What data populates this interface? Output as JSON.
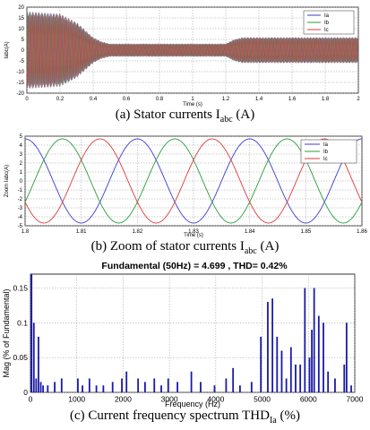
{
  "captions": {
    "a_prefix": "(a) Stator currents I",
    "a_sub": "abc",
    "a_suffix": " (A)",
    "b_prefix": "(b) Zoom of stator currents I",
    "b_sub": "abc",
    "b_suffix": " (A)",
    "c_prefix": "(c) Current frequency spectrum THD",
    "c_sub": "Ia",
    "c_suffix": " (%)"
  },
  "chart_data": [
    {
      "type": "line",
      "title": "",
      "xlabel": "Time (s)",
      "ylabel": "Iabc(A)",
      "xlim": [
        0,
        2
      ],
      "ylim": [
        -20,
        20
      ],
      "xticks": [
        "0",
        "0.2",
        "0.4",
        "0.6",
        "0.8",
        "1",
        "1.2",
        "1.4",
        "1.6",
        "1.8",
        "2"
      ],
      "yticks": [
        "20",
        "15",
        "10",
        "5",
        "0",
        "-5",
        "-10",
        "-15",
        "-20"
      ],
      "grid": true,
      "legend": "top-right",
      "legend_entries": [
        "Ia",
        "Ib",
        "Ic"
      ],
      "envelope": {
        "time": [
          0,
          0.2,
          0.3,
          0.4,
          0.45,
          0.5,
          1.2,
          1.25,
          1.3,
          2.0
        ],
        "amplitude": [
          18,
          17,
          13,
          6,
          4,
          3,
          3,
          5,
          6,
          6
        ]
      },
      "colors": [
        "#3b3bd6",
        "#2a9d3a",
        "#e03a3a"
      ]
    },
    {
      "type": "line",
      "title": "",
      "xlabel": "Time (s)",
      "ylabel": "Zoom Iabc(A)",
      "xlim": [
        1.8,
        1.86
      ],
      "ylim": [
        -5,
        5
      ],
      "xticks": [
        "1.8",
        "1.81",
        "1.82",
        "1.83",
        "1.84",
        "1.85",
        "1.86"
      ],
      "yticks": [
        "5",
        "4",
        "3",
        "2",
        "1",
        "0",
        "-1",
        "-2",
        "-3",
        "-4",
        "-5"
      ],
      "grid": true,
      "legend": "top-right",
      "legend_entries": [
        "Ia",
        "Ib",
        "Ic"
      ],
      "frequency_hz": 50,
      "amplitude": 4.699,
      "phases_deg": [
        90,
        -30,
        210
      ],
      "colors": [
        "#3b3bd6",
        "#2a9d3a",
        "#e03a3a"
      ]
    },
    {
      "type": "bar",
      "title": "Fundamental (50Hz) = 4.699 , THD= 0.42%",
      "xlabel": "Frequency (Hz)",
      "ylabel": "Mag (% of Fundamental)",
      "xlim": [
        0,
        7000
      ],
      "ylim": [
        0,
        0.17
      ],
      "xticks": [
        "0",
        "1000",
        "2000",
        "3000",
        "4000",
        "5000",
        "6000",
        "7000"
      ],
      "yticks": [
        "0",
        "0.05",
        "0.1",
        "0.15"
      ],
      "grid": true,
      "bars": {
        "x": [
          0,
          50,
          100,
          150,
          200,
          250,
          350,
          500,
          650,
          1000,
          1100,
          1250,
          1400,
          1550,
          1750,
          1950,
          2050,
          2300,
          2450,
          2650,
          2800,
          2950,
          3150,
          3450,
          3650,
          3950,
          4200,
          4350,
          4500,
          4750,
          4950,
          5100,
          5200,
          5300,
          5400,
          5500,
          5600,
          5700,
          5800,
          5900,
          6000,
          6050,
          6100,
          6200,
          6300,
          6400,
          6550,
          6750,
          6800,
          6900
        ],
        "values": [
          0.17,
          0.1,
          0.02,
          0.08,
          0.015,
          0.01,
          0.01,
          0.015,
          0.02,
          0.02,
          0.01,
          0.02,
          0.01,
          0.01,
          0.015,
          0.02,
          0.03,
          0.02,
          0.015,
          0.02,
          0.01,
          0.02,
          0.015,
          0.03,
          0.015,
          0.01,
          0.02,
          0.035,
          0.01,
          0.015,
          0.08,
          0.13,
          0.135,
          0.08,
          0.06,
          0.02,
          0.065,
          0.04,
          0.04,
          0.15,
          0.05,
          0.09,
          0.15,
          0.11,
          0.1,
          0.03,
          0.02,
          0.04,
          0.1,
          0.01
        ]
      },
      "color": "#1a1aa8"
    }
  ]
}
